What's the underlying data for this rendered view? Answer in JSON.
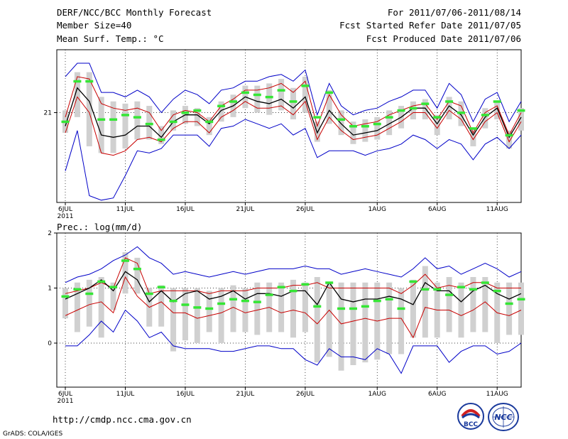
{
  "header": {
    "title": "DERF/NCC/BCC Monthly Forecast",
    "member_size": "Member Size=40",
    "variable": "Mean Surf. Temp.: °C",
    "period": "For 2011/07/06-2011/08/14",
    "started": "Fcst Started Refer Date 2011/07/05",
    "produced": "Fcst Produced Date 2011/07/06"
  },
  "footer": {
    "url": "http://cmdp.ncc.cma.gov.cn",
    "grads": "GrADS: COLA/IGES",
    "logo_bcc": "BCC",
    "logo_ncc": "NCC"
  },
  "colors": {
    "box": "#d0d0d0",
    "median": "#35e635",
    "outer": "#0000c8",
    "red": "#c80000",
    "mean": "#000000",
    "grid": "#000000"
  },
  "chart_data": [
    {
      "type": "line",
      "title": "Mean Surf. Temp.: °C",
      "x_labels": [
        "6JUL",
        "11JUL",
        "16JUL",
        "21JUL",
        "26JUL",
        "1AUG",
        "6AUG",
        "11AUG"
      ],
      "x_label_days": [
        0,
        5,
        10,
        15,
        20,
        26,
        31,
        36
      ],
      "year_label": "2011",
      "y_ticks": [
        {
          "v": 21,
          "label": "21"
        }
      ],
      "ylim": [
        17.0,
        23.8
      ],
      "n": 39,
      "series": {
        "max": [
          22.6,
          23.2,
          23.2,
          21.9,
          21.9,
          21.7,
          22.0,
          21.7,
          21.0,
          21.6,
          22.0,
          21.8,
          21.4,
          22.0,
          22.1,
          22.4,
          22.4,
          22.6,
          22.7,
          22.4,
          22.9,
          20.9,
          22.3,
          21.3,
          20.9,
          21.1,
          21.2,
          21.5,
          21.7,
          22.0,
          22.0,
          21.2,
          22.3,
          21.8,
          20.6,
          21.6,
          21.9,
          20.6,
          21.5
        ],
        "p90": [
          21.1,
          22.8,
          22.8,
          21.7,
          21.5,
          21.4,
          21.5,
          21.3,
          20.4,
          21.1,
          21.3,
          21.2,
          20.8,
          21.5,
          21.8,
          22.2,
          22.2,
          22.3,
          22.5,
          22.1,
          22.6,
          20.6,
          22.0,
          21.1,
          20.6,
          20.7,
          20.8,
          21.1,
          21.3,
          21.5,
          21.6,
          20.9,
          21.7,
          21.5,
          20.3,
          21.2,
          21.5,
          20.2,
          21.2
        ],
        "p80": [
          20.8,
          22.6,
          22.5,
          21.4,
          21.2,
          21.1,
          21.2,
          21.0,
          20.2,
          20.9,
          21.1,
          21.0,
          20.6,
          21.3,
          21.6,
          22.0,
          22.0,
          22.1,
          22.3,
          21.9,
          22.4,
          20.4,
          21.8,
          20.9,
          20.4,
          20.5,
          20.6,
          20.9,
          21.1,
          21.3,
          21.4,
          20.7,
          21.5,
          21.3,
          20.1,
          21.0,
          21.3,
          20.0,
          21.0
        ],
        "p20": [
          20.4,
          21.1,
          20.6,
          19.6,
          19.5,
          19.7,
          20.0,
          20.0,
          19.8,
          20.4,
          20.7,
          20.6,
          20.2,
          20.8,
          21.0,
          21.4,
          21.2,
          21.1,
          21.3,
          20.9,
          21.2,
          19.9,
          20.7,
          20.2,
          19.8,
          19.9,
          20.0,
          20.2,
          20.5,
          20.9,
          20.9,
          20.2,
          20.9,
          20.6,
          19.7,
          20.5,
          20.9,
          19.6,
          20.4
        ],
        "p10": [
          20.1,
          20.8,
          19.5,
          19.2,
          19.2,
          19.4,
          19.8,
          19.8,
          19.6,
          20.2,
          20.5,
          20.4,
          20.0,
          20.6,
          20.8,
          21.2,
          21.0,
          20.9,
          21.1,
          20.7,
          21.0,
          19.7,
          20.5,
          20.0,
          19.6,
          19.7,
          19.8,
          20.0,
          20.3,
          20.7,
          20.7,
          20.0,
          20.7,
          20.4,
          19.5,
          20.3,
          20.7,
          19.4,
          20.2
        ],
        "mean": [
          20.4,
          22.1,
          21.5,
          20.0,
          19.9,
          20.0,
          20.4,
          20.4,
          19.9,
          20.6,
          20.9,
          20.9,
          20.5,
          21.1,
          21.3,
          21.7,
          21.5,
          21.4,
          21.6,
          21.2,
          21.7,
          20.1,
          21.1,
          20.5,
          20.0,
          20.1,
          20.2,
          20.5,
          20.8,
          21.2,
          21.2,
          20.5,
          21.3,
          20.9,
          20.0,
          20.8,
          21.2,
          19.9,
          20.8
        ],
        "median": [
          20.6,
          22.4,
          22.4,
          20.7,
          20.7,
          20.9,
          20.8,
          20.5,
          19.8,
          20.6,
          21.0,
          21.1,
          20.6,
          21.3,
          21.5,
          21.9,
          21.8,
          21.7,
          22.0,
          21.5,
          22.2,
          20.8,
          21.9,
          20.7,
          20.4,
          20.4,
          20.5,
          20.8,
          21.1,
          21.2,
          21.4,
          20.8,
          21.5,
          21.0,
          20.3,
          20.9,
          21.5,
          20.0,
          21.1
        ],
        "red": [
          20.1,
          21.7,
          21.0,
          19.2,
          19.1,
          19.3,
          19.8,
          19.9,
          19.7,
          20.3,
          20.6,
          20.6,
          20.1,
          20.8,
          21.1,
          21.5,
          21.2,
          21.2,
          21.3,
          20.9,
          21.5,
          19.8,
          20.8,
          20.2,
          19.8,
          19.9,
          20.0,
          20.3,
          20.6,
          21.0,
          21.0,
          20.3,
          21.1,
          20.7,
          19.8,
          20.6,
          21.0,
          19.7,
          20.6
        ],
        "min": [
          18.4,
          20.2,
          17.3,
          17.1,
          17.2,
          18.2,
          19.3,
          19.2,
          19.4,
          20.0,
          20.0,
          20.0,
          19.5,
          20.3,
          20.4,
          20.7,
          20.5,
          20.3,
          20.5,
          20.0,
          20.3,
          19.0,
          19.3,
          19.3,
          19.3,
          19.1,
          19.3,
          19.4,
          19.6,
          20.0,
          19.8,
          19.4,
          19.8,
          19.6,
          18.9,
          19.6,
          19.9,
          19.4,
          20.0
        ]
      }
    },
    {
      "type": "line",
      "title": "Prec.: log(mm/d)",
      "x_labels": [
        "6JUL",
        "11JUL",
        "16JUL",
        "21JUL",
        "26JUL",
        "1AUG",
        "6AUG",
        "11AUG"
      ],
      "x_label_days": [
        0,
        5,
        10,
        15,
        20,
        26,
        31,
        36
      ],
      "year_label": "2011",
      "y_ticks": [
        {
          "v": 2,
          "label": "2"
        },
        {
          "v": 1,
          "label": "1"
        },
        {
          "v": 0,
          "label": "0"
        }
      ],
      "ylim": [
        -0.8,
        2.0
      ],
      "n": 39,
      "series": {
        "max": [
          1.1,
          1.2,
          1.25,
          1.35,
          1.5,
          1.6,
          1.75,
          1.55,
          1.45,
          1.25,
          1.3,
          1.25,
          1.2,
          1.25,
          1.3,
          1.25,
          1.3,
          1.35,
          1.35,
          1.35,
          1.4,
          1.35,
          1.35,
          1.25,
          1.3,
          1.35,
          1.3,
          1.25,
          1.2,
          1.35,
          1.55,
          1.35,
          1.4,
          1.25,
          1.35,
          1.45,
          1.35,
          1.2,
          1.3
        ],
        "p90": [
          1.0,
          1.1,
          1.15,
          1.2,
          1.1,
          1.65,
          1.55,
          1.0,
          1.05,
          1.0,
          1.0,
          1.0,
          0.95,
          1.0,
          1.05,
          1.0,
          1.1,
          1.1,
          1.1,
          1.15,
          1.1,
          1.2,
          1.1,
          1.1,
          1.1,
          1.1,
          1.1,
          1.1,
          1.0,
          1.15,
          1.4,
          1.1,
          1.2,
          1.1,
          1.2,
          1.2,
          1.1,
          1.1,
          1.1
        ],
        "p80": [
          0.9,
          0.95,
          1.0,
          1.1,
          1.0,
          1.55,
          1.45,
          0.9,
          0.95,
          0.95,
          0.95,
          0.95,
          0.9,
          0.95,
          0.95,
          0.95,
          1.0,
          1.0,
          1.0,
          1.05,
          1.05,
          1.1,
          1.0,
          1.0,
          1.0,
          1.0,
          1.0,
          1.0,
          0.9,
          1.05,
          1.25,
          1.0,
          1.05,
          1.0,
          1.1,
          1.1,
          1.0,
          1.0,
          1.0
        ],
        "p20": [
          0.6,
          0.5,
          0.6,
          0.6,
          0.7,
          1.0,
          1.0,
          0.4,
          0.5,
          0.1,
          0.2,
          0.2,
          0.3,
          0.2,
          0.3,
          0.3,
          0.3,
          0.3,
          0.3,
          0.25,
          0.3,
          0.1,
          0.2,
          0.1,
          0.1,
          0.2,
          0.1,
          0.2,
          0.2,
          0.3,
          0.2,
          0.2,
          0.3,
          0.2,
          0.3,
          0.3,
          0.2,
          0.3,
          0.3
        ],
        "p10": [
          0.45,
          0.2,
          0.3,
          0.1,
          0.6,
          0.9,
          0.9,
          0.3,
          0.3,
          -0.15,
          0.05,
          0.0,
          0.2,
          0.0,
          0.2,
          0.2,
          0.15,
          0.2,
          0.2,
          0.1,
          0.2,
          -0.35,
          -0.25,
          -0.5,
          -0.4,
          -0.35,
          -0.3,
          -0.2,
          -0.2,
          0.1,
          0.1,
          0.1,
          0.2,
          0.1,
          0.2,
          0.2,
          0.0,
          0.15,
          0.15
        ],
        "mean": [
          0.8,
          0.9,
          1.0,
          1.15,
          0.95,
          1.3,
          1.15,
          0.75,
          0.95,
          0.75,
          0.9,
          0.95,
          0.8,
          0.85,
          0.95,
          0.8,
          0.9,
          0.9,
          0.85,
          0.95,
          0.95,
          0.7,
          1.1,
          0.8,
          0.75,
          0.8,
          0.8,
          0.85,
          0.8,
          0.7,
          1.1,
          0.95,
          0.95,
          0.75,
          0.95,
          1.05,
          0.9,
          0.8,
          0.9
        ],
        "median": [
          0.85,
          0.98,
          0.9,
          1.12,
          1.02,
          1.5,
          1.35,
          0.9,
          1.02,
          0.77,
          0.7,
          0.65,
          0.63,
          0.72,
          0.8,
          0.77,
          0.75,
          0.88,
          1.02,
          0.95,
          1.07,
          0.67,
          1.1,
          0.63,
          0.63,
          0.67,
          0.77,
          0.8,
          0.63,
          1.12,
          0.98,
          0.98,
          0.88,
          1.02,
          0.98,
          1.1,
          0.95,
          0.72,
          0.8
        ],
        "red": [
          0.5,
          0.6,
          0.7,
          0.75,
          0.55,
          1.2,
          0.85,
          0.65,
          0.75,
          0.55,
          0.55,
          0.45,
          0.5,
          0.55,
          0.65,
          0.55,
          0.6,
          0.65,
          0.55,
          0.6,
          0.55,
          0.35,
          0.6,
          0.35,
          0.4,
          0.45,
          0.4,
          0.45,
          0.45,
          0.1,
          0.65,
          0.6,
          0.6,
          0.5,
          0.6,
          0.75,
          0.55,
          0.5,
          0.6
        ],
        "min": [
          -0.05,
          -0.05,
          0.15,
          0.4,
          0.2,
          0.6,
          0.4,
          0.1,
          0.2,
          -0.05,
          -0.1,
          -0.1,
          -0.1,
          -0.15,
          -0.15,
          -0.1,
          -0.05,
          -0.05,
          -0.1,
          -0.1,
          -0.3,
          -0.4,
          -0.1,
          -0.25,
          -0.25,
          -0.3,
          -0.1,
          -0.2,
          -0.55,
          -0.05,
          -0.05,
          -0.05,
          -0.35,
          -0.15,
          -0.05,
          -0.05,
          -0.2,
          -0.15,
          0.0
        ]
      }
    }
  ]
}
